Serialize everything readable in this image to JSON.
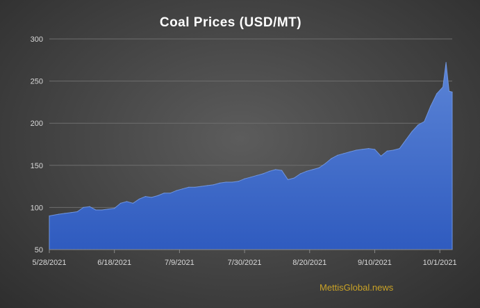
{
  "chart_data": {
    "type": "area",
    "title": "Coal Prices  (USD/MT)",
    "xlabel": "",
    "ylabel": "",
    "ylim": [
      50,
      300
    ],
    "yticks": [
      50,
      100,
      150,
      200,
      250,
      300
    ],
    "grid": true,
    "legend": "none",
    "colors": {
      "fill_top": "#5b84d6",
      "fill_bottom": "#2f5bbf",
      "line": "#6f95e0"
    },
    "x_tick_labels": [
      "5/28/2021",
      "6/18/2021",
      "7/9/2021",
      "7/30/2021",
      "8/20/2021",
      "9/10/2021",
      "10/1/2021"
    ],
    "x": [
      "2021-05-28",
      "2021-05-31",
      "2021-06-02",
      "2021-06-04",
      "2021-06-06",
      "2021-06-08",
      "2021-06-10",
      "2021-06-12",
      "2021-06-14",
      "2021-06-16",
      "2021-06-18",
      "2021-06-20",
      "2021-06-22",
      "2021-06-24",
      "2021-06-26",
      "2021-06-28",
      "2021-06-30",
      "2021-07-02",
      "2021-07-04",
      "2021-07-06",
      "2021-07-08",
      "2021-07-10",
      "2021-07-12",
      "2021-07-14",
      "2021-07-16",
      "2021-07-18",
      "2021-07-20",
      "2021-07-22",
      "2021-07-24",
      "2021-07-26",
      "2021-07-28",
      "2021-07-30",
      "2021-08-01",
      "2021-08-03",
      "2021-08-05",
      "2021-08-07",
      "2021-08-09",
      "2021-08-11",
      "2021-08-13",
      "2021-08-15",
      "2021-08-17",
      "2021-08-19",
      "2021-08-21",
      "2021-08-23",
      "2021-08-25",
      "2021-08-27",
      "2021-08-29",
      "2021-08-31",
      "2021-09-02",
      "2021-09-04",
      "2021-09-06",
      "2021-09-08",
      "2021-09-10",
      "2021-09-12",
      "2021-09-14",
      "2021-09-16",
      "2021-09-18",
      "2021-09-20",
      "2021-09-22",
      "2021-09-24",
      "2021-09-26",
      "2021-09-28",
      "2021-09-30",
      "2021-10-02",
      "2021-10-03",
      "2021-10-04",
      "2021-10-05"
    ],
    "values": [
      90,
      92,
      93,
      94,
      95,
      100,
      101,
      97,
      97,
      98,
      99,
      105,
      107,
      105,
      110,
      113,
      112,
      114,
      117,
      117,
      120,
      122,
      124,
      124,
      125,
      126,
      127,
      129,
      130,
      130,
      131,
      134,
      136,
      138,
      140,
      143,
      145,
      144,
      133,
      135,
      140,
      143,
      145,
      147,
      152,
      158,
      162,
      164,
      166,
      168,
      169,
      170,
      169,
      161,
      167,
      168,
      170,
      180,
      190,
      198,
      202,
      220,
      235,
      243,
      272,
      238,
      237
    ]
  },
  "watermark": "MettisGlobal.news"
}
